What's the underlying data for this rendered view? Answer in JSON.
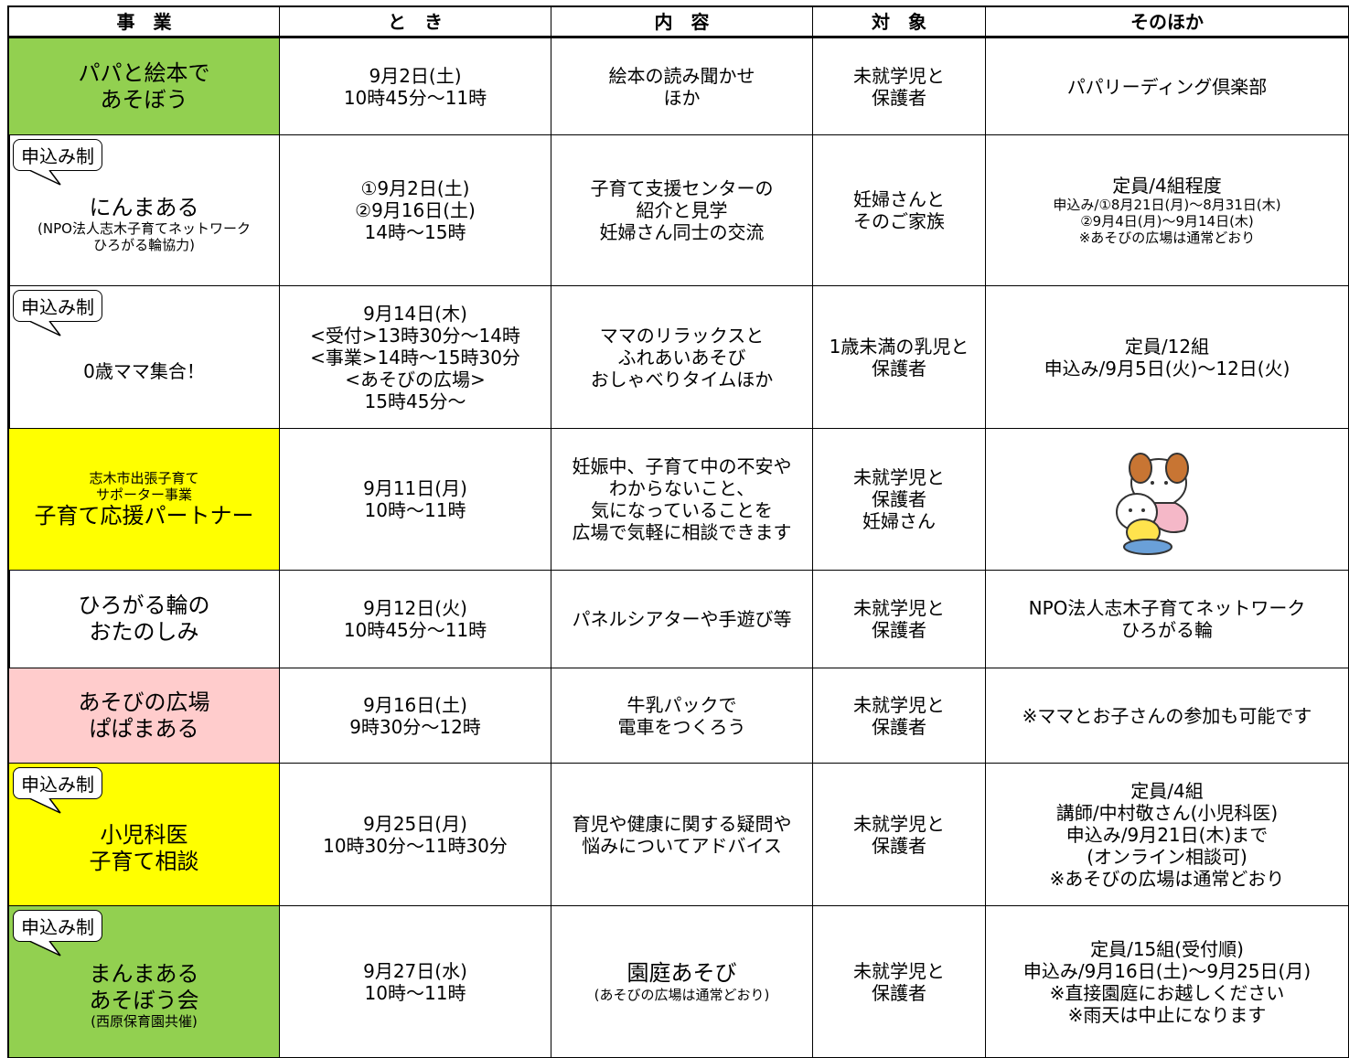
{
  "header": {
    "columns": [
      "事　業",
      "と　き",
      "内　容",
      "対　象",
      "そのほか"
    ]
  },
  "rows": [
    {
      "event": [
        "パパと絵本で",
        "あそぼう"
      ],
      "when": [
        "9月2日(土)",
        "10時45分～11時"
      ],
      "content": [
        "絵本の読み聞かせ",
        "ほか"
      ],
      "target": [
        "未就学児と",
        "保護者"
      ],
      "other": [
        "パパリーディング倶楽部"
      ]
    },
    {
      "badge": "申込み制",
      "event": [
        "にんまある",
        "(NPO法人志木子育てネットワーク",
        "ひろがる輪協力)"
      ],
      "when": [
        "①9月2日(土)",
        "②9月16日(土)",
        "14時～15時"
      ],
      "content": [
        "子育て支援センターの",
        "紹介と見学",
        "妊婦さん同士の交流"
      ],
      "target": [
        "妊婦さんと",
        "そのご家族"
      ],
      "other": [
        "定員/4組程度",
        "申込み/①8月21日(月)～8月31日(木)",
        "②9月4日(月)～9月14日(木)",
        "※あそびの広場は通常どおり"
      ]
    },
    {
      "badge": "申込み制",
      "event": [
        "0歳ママ集合！"
      ],
      "when": [
        "9月14日(木)",
        "<受付>13時30分～14時",
        "<事業>14時～15時30分",
        "<あそびの広場>",
        "15時45分～"
      ],
      "content": [
        "ママのリラックスと",
        "ふれあいあそび",
        "おしゃべりタイムほか"
      ],
      "target": [
        "1歳未満の乳児と",
        "保護者"
      ],
      "other": [
        "定員/12組",
        "申込み/9月5日(火)～12日(火)"
      ]
    },
    {
      "event": [
        "志木市出張子育て",
        "サポーター事業",
        "子育て応援パートナー"
      ],
      "when": [
        "9月11日(月)",
        "10時～11時"
      ],
      "content": [
        "妊娠中、子育て中の不安や",
        "わからないこと、",
        "気になっていることを",
        "広場で気軽に相談できます"
      ],
      "target": [
        "未就学児と",
        "保護者",
        "妊婦さん"
      ],
      "other": []
    },
    {
      "event": [
        "ひろがる輪の",
        "おたのしみ"
      ],
      "when": [
        "9月12日(火)",
        "10時45分～11時"
      ],
      "content": [
        "パネルシアターや手遊び等"
      ],
      "target": [
        "未就学児と",
        "保護者"
      ],
      "other": [
        "NPO法人志木子育てネットワーク",
        "ひろがる輪"
      ]
    },
    {
      "event": [
        "あそびの広場",
        "ぱぱまある"
      ],
      "when": [
        "9月16日(土)",
        "9時30分～12時"
      ],
      "content": [
        "牛乳パックで",
        "電車をつくろう"
      ],
      "target": [
        "未就学児と",
        "保護者"
      ],
      "other": [
        "※ママとお子さんの参加も可能です"
      ]
    },
    {
      "badge": "申込み制",
      "event": [
        "小児科医",
        "子育て相談"
      ],
      "when": [
        "9月25日(月)",
        "10時30分～11時30分"
      ],
      "content": [
        "育児や健康に関する疑問や",
        "悩みについてアドバイス"
      ],
      "target": [
        "未就学児と",
        "保護者"
      ],
      "other": [
        "定員/4組",
        "講師/中村敬さん(小児科医)",
        "申込み/9月21日(木)まで",
        "(オンライン相談可)",
        "※あそびの広場は通常どおり"
      ]
    },
    {
      "badge": "申込み制",
      "event": [
        "まんまある",
        "あそぼう会",
        "(西原保育園共催)"
      ],
      "when": [
        "9月27日(水)",
        "10時～11時"
      ],
      "content": [
        "園庭あそび",
        "(あそびの広場は通常どおり)"
      ],
      "target": [
        "未就学児と",
        "保護者"
      ],
      "other": [
        "定員/15組(受付順)",
        "申込み/9月16日(土)～9月25日(月)",
        "※直接園庭にお越しください",
        "※雨天は中止になります"
      ]
    }
  ]
}
